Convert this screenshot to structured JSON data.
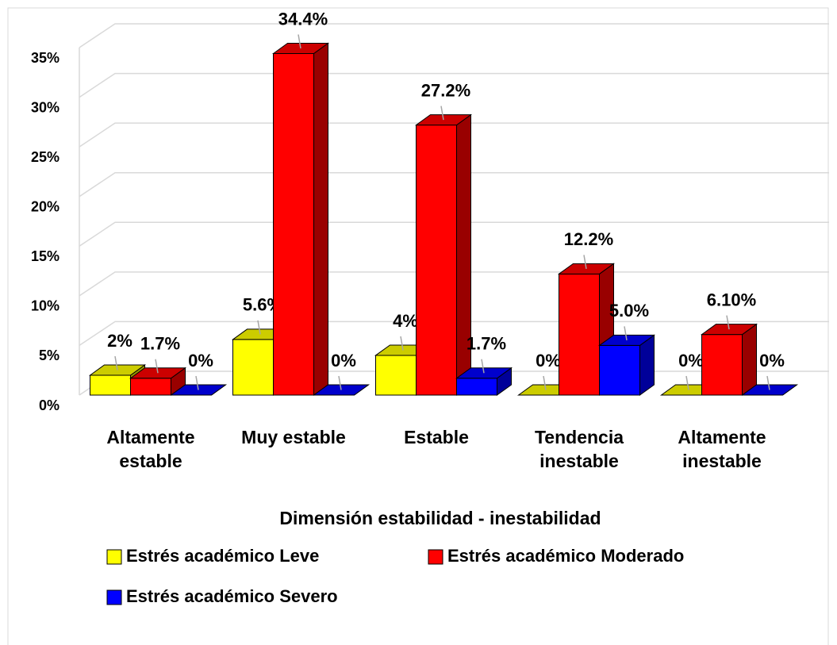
{
  "chart_data": {
    "type": "bar3d",
    "x_label": "Dimensión estabilidad - inestabilidad",
    "categories": [
      "Altamente estable",
      "Muy estable",
      "Estable",
      "Tendencia inestable",
      "Altamente inestable"
    ],
    "series": [
      {
        "name": "Estrés académico Leve",
        "color": "#ffff00",
        "values": [
          2,
          5.6,
          4,
          0,
          0
        ],
        "value_labels": [
          "2%",
          "5.6%",
          "4%",
          "0%",
          "0%"
        ]
      },
      {
        "name": "Estrés académico Moderado",
        "color": "#ff0000",
        "values": [
          1.7,
          34.4,
          27.2,
          12.2,
          6.1
        ],
        "value_labels": [
          "1.7%",
          "34.4%",
          "27.2%",
          "12.2%",
          "6.10%"
        ]
      },
      {
        "name": "Estrés académico Severo",
        "color": "#0000ff",
        "values": [
          0,
          0,
          1.7,
          5.0,
          0
        ],
        "value_labels": [
          "0%",
          "0%",
          "1.7%",
          "5.0%",
          "0%"
        ]
      }
    ],
    "ylim": [
      0,
      35
    ],
    "yticks": [
      {
        "value": 0,
        "label": "0%"
      },
      {
        "value": 5,
        "label": "5%"
      },
      {
        "value": 10,
        "label": "10%"
      },
      {
        "value": 15,
        "label": "15%"
      },
      {
        "value": 20,
        "label": "20%"
      },
      {
        "value": 25,
        "label": "25%"
      },
      {
        "value": 30,
        "label": "30%"
      },
      {
        "value": 35,
        "label": "35%"
      }
    ],
    "grid": true,
    "legend": "bottom"
  }
}
